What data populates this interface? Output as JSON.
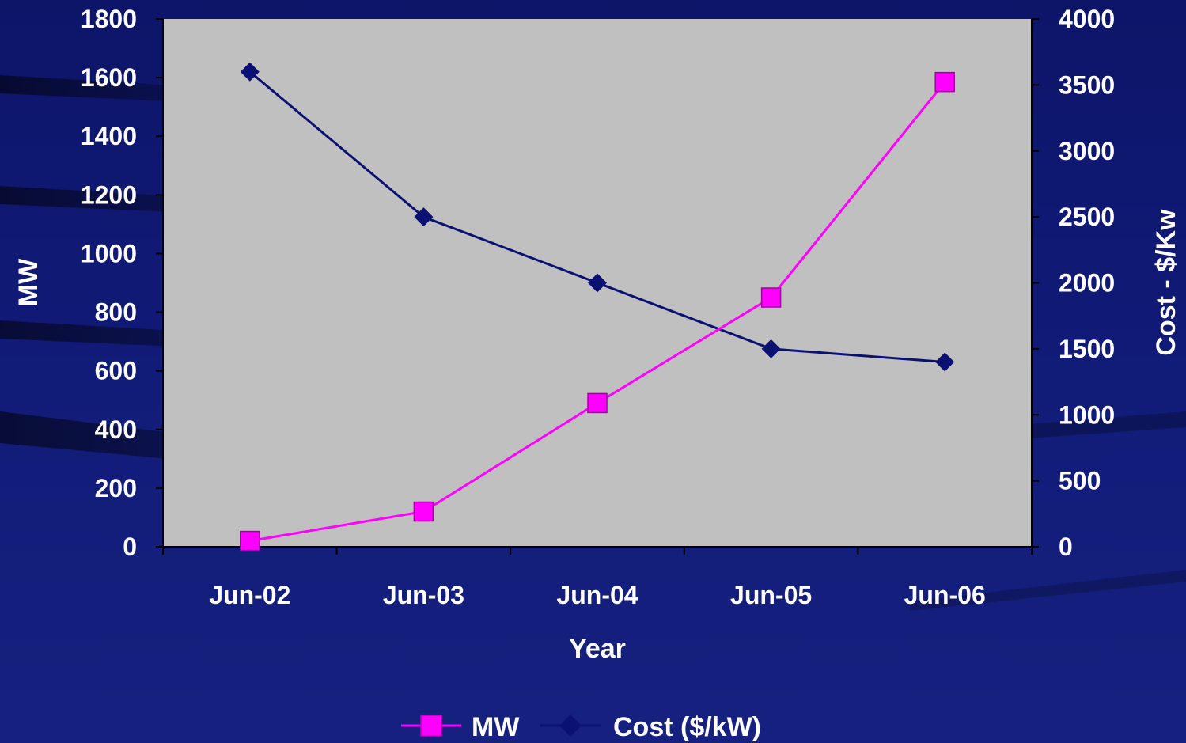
{
  "chart_data": {
    "type": "line",
    "title": "",
    "xlabel": "Year",
    "ylabel_left": "MW",
    "ylabel_right": "Cost - $/Kw",
    "categories": [
      "Jun-02",
      "Jun-03",
      "Jun-04",
      "Jun-05",
      "Jun-06"
    ],
    "ylim_left": [
      0,
      1800
    ],
    "ylim_right": [
      0,
      4000
    ],
    "yticks_left": [
      0,
      200,
      400,
      600,
      800,
      1000,
      1200,
      1400,
      1600,
      1800
    ],
    "yticks_right": [
      0,
      500,
      1000,
      1500,
      2000,
      2500,
      3000,
      3500,
      4000
    ],
    "series": [
      {
        "name": "MW",
        "axis": "left",
        "marker": "square",
        "color": "#ff00ff",
        "values": [
          20,
          120,
          490,
          850,
          1585
        ]
      },
      {
        "name": "Cost ($/kW)",
        "axis": "right",
        "marker": "diamond",
        "color": "#0a1172",
        "values": [
          3600,
          2500,
          2000,
          1500,
          1400
        ]
      }
    ],
    "plot_background": "#c0c0c0",
    "grid": false,
    "legend_position": "bottom-center"
  }
}
